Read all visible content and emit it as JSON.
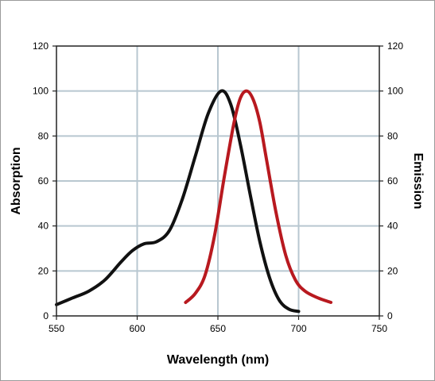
{
  "chart_data": {
    "type": "line",
    "xlabel": "Wavelength (nm)",
    "ylabel_left": "Absorption",
    "ylabel_right": "Emission",
    "xlim": [
      550,
      750
    ],
    "ylim": [
      0,
      120
    ],
    "x_ticks": [
      550,
      600,
      650,
      700,
      750
    ],
    "y_ticks": [
      0,
      20,
      40,
      60,
      80,
      100,
      120
    ],
    "grid": true,
    "series": [
      {
        "color": "#111111",
        "x": [
          550,
          560,
          570,
          580,
          590,
          597,
          604,
          612,
          620,
          628,
          636,
          644,
          652,
          658,
          664,
          670,
          676,
          682,
          688,
          694,
          700
        ],
        "y": [
          5,
          8,
          11,
          16,
          24,
          29,
          32,
          33,
          38,
          52,
          71,
          90,
          100,
          94,
          76,
          54,
          33,
          17,
          7,
          3,
          2
        ]
      },
      {
        "color": "#b8191f",
        "x": [
          630,
          636,
          642,
          648,
          654,
          660,
          664,
          668,
          672,
          676,
          680,
          686,
          692,
          698,
          704,
          712,
          720
        ],
        "y": [
          6,
          10,
          18,
          36,
          62,
          86,
          97,
          100,
          96,
          86,
          70,
          46,
          27,
          16,
          11,
          8,
          6
        ]
      }
    ]
  }
}
